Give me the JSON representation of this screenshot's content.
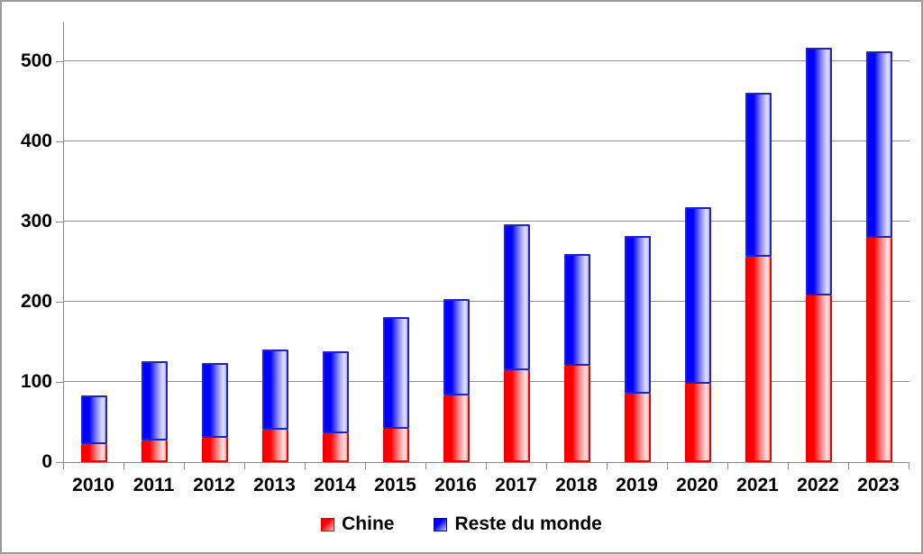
{
  "chart_data": {
    "type": "bar",
    "stacked": true,
    "title": "",
    "xlabel": "",
    "ylabel": "",
    "categories": [
      "2010",
      "2011",
      "2012",
      "2013",
      "2014",
      "2015",
      "2016",
      "2017",
      "2018",
      "2019",
      "2020",
      "2021",
      "2022",
      "2023"
    ],
    "series": [
      {
        "name": "Chine",
        "color": "#ff0000",
        "values": [
          22,
          27,
          30,
          40,
          36,
          42,
          83,
          115,
          120,
          86,
          98,
          256,
          208,
          280
        ]
      },
      {
        "name": "Reste du monde",
        "color": "#0000ff",
        "values": [
          61,
          99,
          93,
          100,
          102,
          140,
          120,
          182,
          139,
          197,
          221,
          205,
          309,
          233
        ]
      }
    ],
    "totals": [
      83,
      126,
      123,
      140,
      138,
      182,
      203,
      297,
      259,
      283,
      319,
      461,
      517,
      513
    ],
    "ylim": [
      0,
      550
    ],
    "yticks": [
      0,
      100,
      200,
      300,
      400,
      500
    ],
    "grid": true,
    "gridline_color": "#8f8f8f",
    "legend_position": "bottom"
  },
  "legend": {
    "items": [
      {
        "label": "Chine",
        "color": "#ff0000"
      },
      {
        "label": "Reste du monde",
        "color": "#0000ff"
      }
    ]
  }
}
